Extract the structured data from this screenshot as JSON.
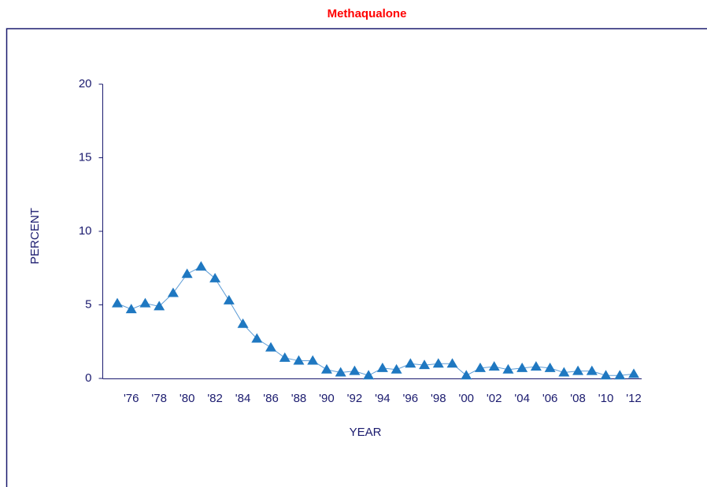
{
  "chart_data": {
    "type": "line",
    "title": "Methaqualone",
    "x_label": "YEAR",
    "y_label": "PERCENT",
    "categories": [
      null,
      "'76",
      null,
      "'78",
      null,
      "'80",
      null,
      "'82",
      null,
      "'84",
      null,
      "'86",
      null,
      "'88",
      null,
      "'90",
      null,
      "'92",
      null,
      "'94",
      null,
      "'96",
      null,
      "'98",
      null,
      "'00",
      null,
      "'02",
      null,
      "'04",
      null,
      "'06",
      null,
      "'08",
      null,
      "'10",
      null,
      "'12"
    ],
    "series": [
      {
        "name": "Methaqualone",
        "color": "#1f78c1",
        "values": [
          5.1,
          4.7,
          5.1,
          4.9,
          5.8,
          7.1,
          7.6,
          6.8,
          5.3,
          3.7,
          2.7,
          2.1,
          1.4,
          1.2,
          1.2,
          0.6,
          0.4,
          0.5,
          0.2,
          0.7,
          0.6,
          1.0,
          0.9,
          1.0,
          1.0,
          0.2,
          0.7,
          0.8,
          0.6,
          0.7,
          0.8,
          0.7,
          0.4,
          0.5,
          0.5,
          0.2,
          0.2,
          0.3
        ]
      }
    ],
    "ylim": [
      0,
      20
    ],
    "yticks": [
      0,
      5,
      10,
      15,
      20
    ]
  }
}
